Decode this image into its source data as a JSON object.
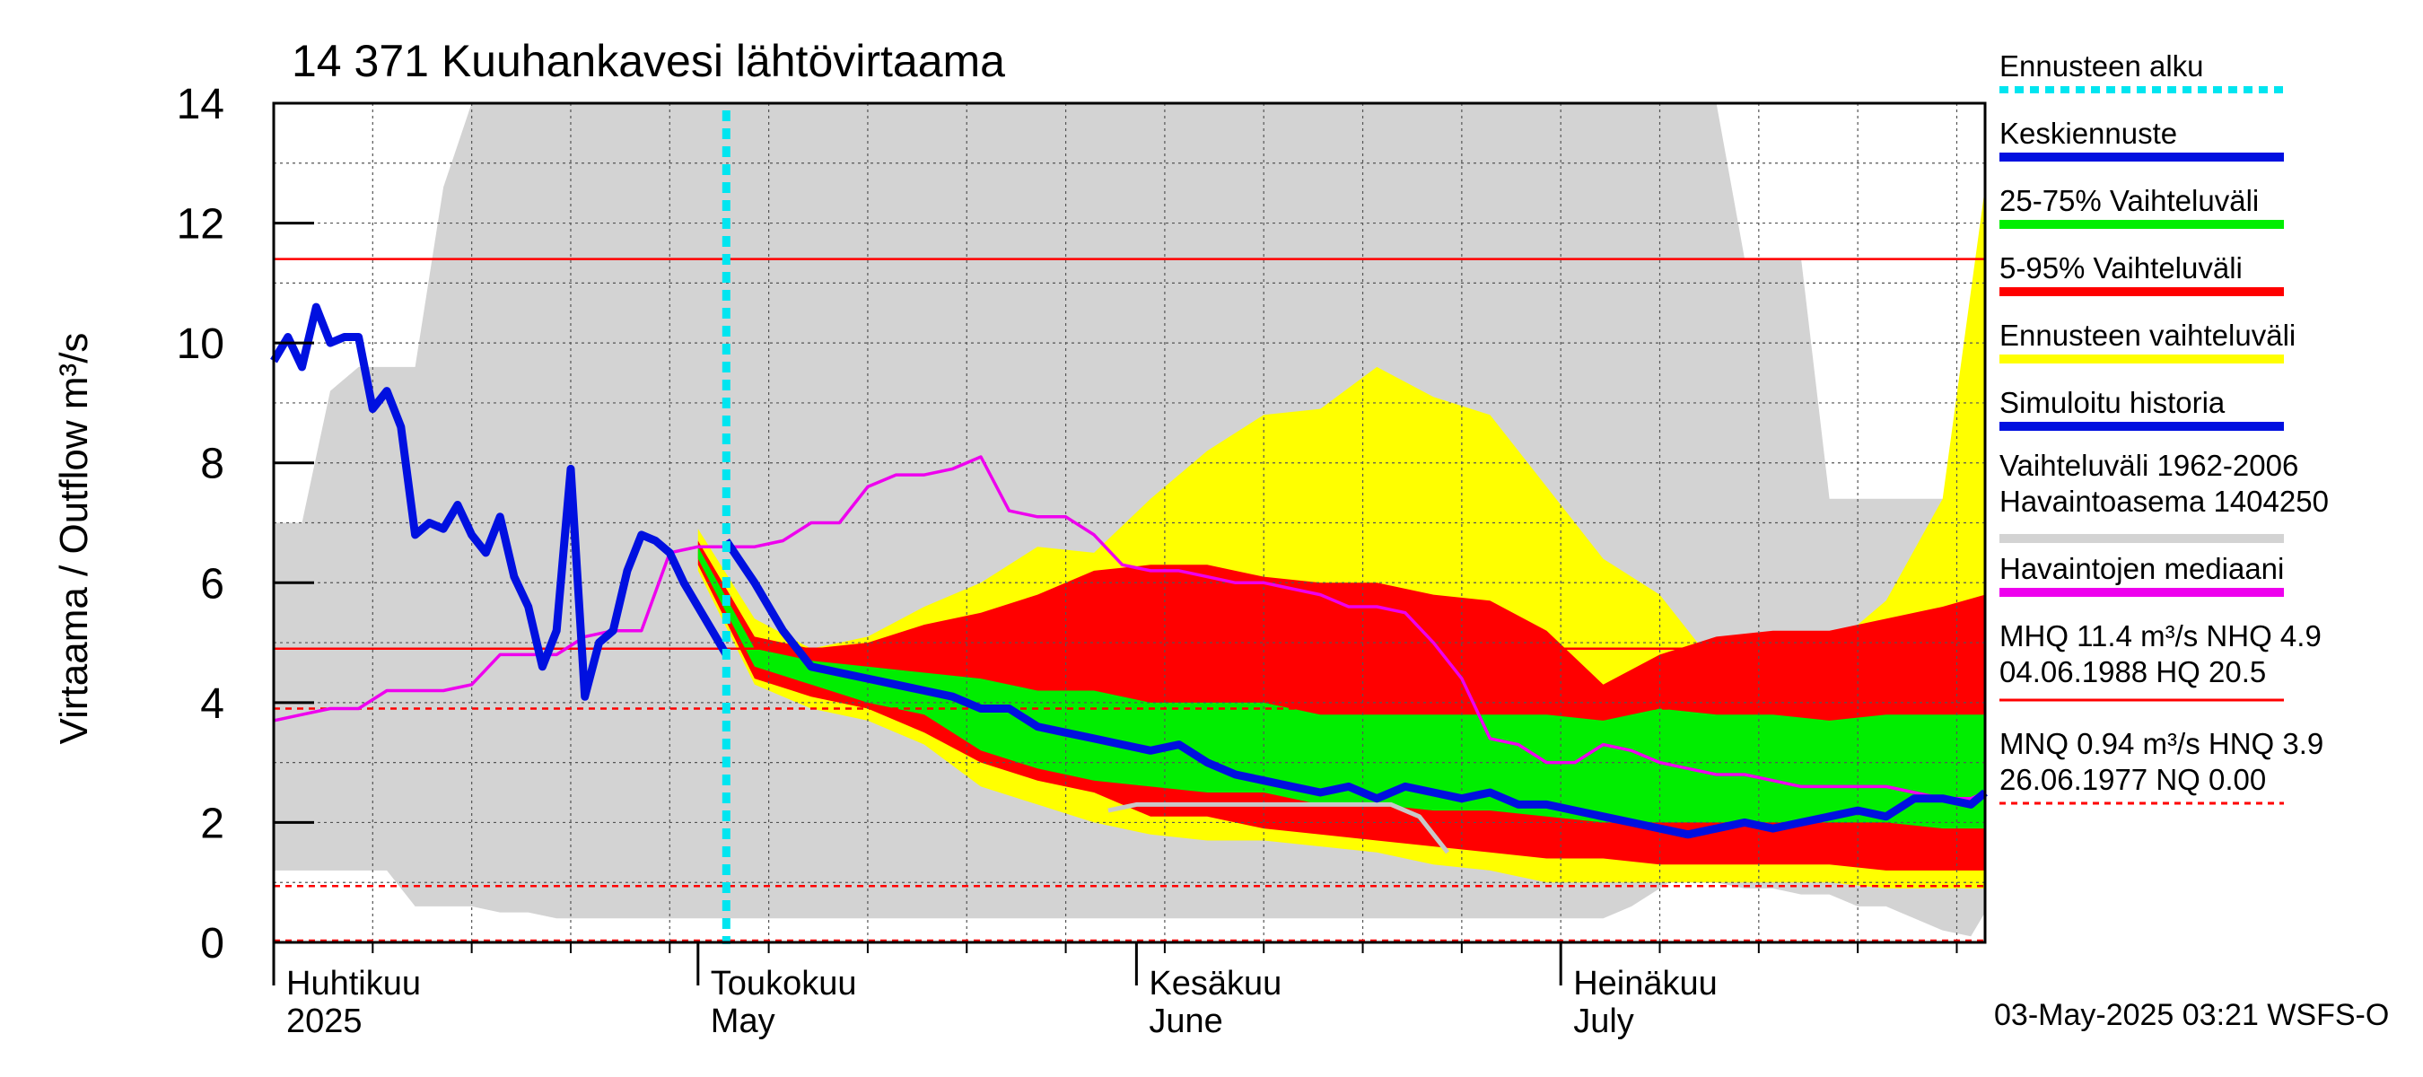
{
  "chart_data": {
    "type": "area",
    "title": "14 371 Kuuhankavesi lähtövirtaama",
    "ylabel": "Virtaama / Outflow    m³/s",
    "ylim": [
      0,
      14
    ],
    "yticks": [
      "0",
      "2",
      "4",
      "6",
      "8",
      "10",
      "12",
      "14"
    ],
    "x_start": "2025-04-01",
    "x_end": "2025-07-31",
    "month_labels": [
      {
        "fi": "Huhtikuu",
        "en": "2025",
        "date": "2025-04-01"
      },
      {
        "fi": "Toukokuu",
        "en": "May",
        "date": "2025-05-01"
      },
      {
        "fi": "Kesäkuu",
        "en": "June",
        "date": "2025-06-01"
      },
      {
        "fi": "Heinäkuu",
        "en": "July",
        "date": "2025-07-01"
      }
    ],
    "forecast_start": "2025-05-03",
    "reference_lines": {
      "MHQ": 11.4,
      "MQ_line": 4.9,
      "HNQ": 3.9,
      "MNQ": 0.94,
      "NQ": 0.0
    },
    "legend": [
      {
        "label": "Ennusteen alku",
        "color": "#00e5f0",
        "style": "dotted"
      },
      {
        "label": "Keskiennuste",
        "color": "#0010e0",
        "style": "solid"
      },
      {
        "label": "25-75% Vaihteluväli",
        "color": "#00ee00",
        "style": "solid"
      },
      {
        "label": "5-95% Vaihteluväli",
        "color": "#ff0000",
        "style": "solid"
      },
      {
        "label": "Ennusteen vaihteluväli",
        "color": "#ffff00",
        "style": "solid"
      },
      {
        "label": "Simuloitu historia",
        "color": "#0010e0",
        "style": "solid"
      },
      {
        "label": "Vaihteluväli 1962-2006\n Havaintoasema 1404250",
        "color": "#d3d3d3",
        "style": "solid"
      },
      {
        "label": "Havaintojen mediaani",
        "color": "#ee00ee",
        "style": "solid"
      },
      {
        "label": "MHQ 11.4 m³/s NHQ  4.9\n04.06.1988 HQ 20.5",
        "color": "#ff0000",
        "style": "solid"
      },
      {
        "label": "MNQ 0.94 m³/s HNQ  3.9\n26.06.1977 NQ 0.00",
        "color": "#ff0000",
        "style": "dashed"
      }
    ],
    "footer": "03-May-2025 03:21 WSFS-O",
    "series": {
      "historical_range": {
        "name": "Vaihteluväli 1962-2006",
        "color": "#d3d3d3",
        "x": [
          0,
          2,
          4,
          6,
          8,
          10,
          12,
          14,
          16,
          18,
          20,
          22,
          24,
          26,
          28,
          30,
          32,
          34,
          36,
          38,
          40,
          42,
          44,
          46,
          48,
          50,
          52,
          54,
          56,
          58,
          60,
          62,
          64,
          66,
          68,
          70,
          72,
          74,
          76,
          78,
          80,
          82,
          84,
          86,
          88,
          90,
          92,
          94,
          96,
          98,
          100,
          102,
          104,
          106,
          108,
          110,
          112,
          114,
          116,
          118,
          120,
          121
        ],
        "upper": [
          7.0,
          7.0,
          9.2,
          9.6,
          9.6,
          9.6,
          12.6,
          14.0,
          14.0,
          14.0,
          14.0,
          14.0,
          14.0,
          14.0,
          14.0,
          14.0,
          14.0,
          14.0,
          14.0,
          14.0,
          14.0,
          14.0,
          14.0,
          14.0,
          14.0,
          14.0,
          14.0,
          14.0,
          14.0,
          14.0,
          14.0,
          14.0,
          14.0,
          14.0,
          14.0,
          14.0,
          14.0,
          14.0,
          14.0,
          14.0,
          14.0,
          14.0,
          14.0,
          14.0,
          14.0,
          14.0,
          14.0,
          14.0,
          14.0,
          14.0,
          14.0,
          14.0,
          11.4,
          11.4,
          11.4,
          7.4,
          7.4,
          7.4,
          7.4,
          7.4,
          7.4,
          6.6
        ],
        "lower": [
          1.2,
          1.2,
          1.2,
          1.2,
          1.2,
          0.6,
          0.6,
          0.6,
          0.5,
          0.5,
          0.4,
          0.4,
          0.4,
          0.4,
          0.4,
          0.4,
          0.4,
          0.4,
          0.4,
          0.4,
          0.4,
          0.4,
          0.4,
          0.4,
          0.4,
          0.4,
          0.4,
          0.4,
          0.4,
          0.4,
          0.4,
          0.4,
          0.4,
          0.4,
          0.4,
          0.4,
          0.4,
          0.4,
          0.4,
          0.4,
          0.4,
          0.4,
          0.4,
          0.4,
          0.4,
          0.4,
          0.4,
          0.4,
          0.6,
          0.9,
          1.2,
          1.0,
          0.9,
          0.9,
          0.8,
          0.8,
          0.6,
          0.6,
          0.4,
          0.2,
          0.1,
          0.5
        ]
      },
      "observed_median": {
        "name": "Havaintojen mediaani",
        "color": "#ee00ee",
        "x": [
          0,
          2,
          4,
          6,
          8,
          10,
          12,
          14,
          16,
          18,
          20,
          22,
          24,
          26,
          28,
          30,
          32,
          34,
          36,
          38,
          40,
          42,
          44,
          46,
          48,
          50,
          52,
          54,
          56,
          58,
          60,
          62,
          64,
          66,
          68,
          70,
          72,
          74,
          76,
          78,
          80,
          82,
          84,
          86,
          88,
          90,
          92,
          94,
          96,
          98,
          100,
          102,
          104,
          106,
          108,
          110,
          112,
          114,
          116,
          118,
          120,
          121
        ],
        "values": [
          3.7,
          3.8,
          3.9,
          3.9,
          4.2,
          4.2,
          4.2,
          4.3,
          4.8,
          4.8,
          4.8,
          5.1,
          5.2,
          5.2,
          6.5,
          6.6,
          6.6,
          6.6,
          6.7,
          7.0,
          7.0,
          7.6,
          7.8,
          7.8,
          7.9,
          8.1,
          7.2,
          7.1,
          7.1,
          6.8,
          6.3,
          6.2,
          6.2,
          6.1,
          6.0,
          6.0,
          5.9,
          5.8,
          5.6,
          5.6,
          5.5,
          5.0,
          4.4,
          3.4,
          3.3,
          3.0,
          3.0,
          3.3,
          3.2,
          3.0,
          2.9,
          2.8,
          2.8,
          2.7,
          2.6,
          2.6,
          2.6,
          2.6,
          2.5,
          2.4,
          2.4,
          2.5
        ]
      },
      "simulated_history": {
        "name": "Simuloitu historia",
        "color": "#0010e0",
        "x": [
          0,
          1,
          2,
          3,
          4,
          5,
          6,
          7,
          8,
          9,
          10,
          11,
          12,
          13,
          14,
          15,
          16,
          17,
          18,
          19,
          20,
          21,
          22,
          23,
          24,
          25,
          26,
          27,
          28,
          29,
          30,
          31,
          32
        ],
        "values": [
          9.7,
          10.1,
          9.6,
          10.6,
          10.0,
          10.1,
          10.1,
          8.9,
          9.2,
          8.6,
          6.8,
          7.0,
          6.9,
          7.3,
          6.8,
          6.5,
          7.1,
          6.1,
          5.6,
          4.6,
          5.2,
          7.9,
          4.1,
          5.0,
          5.2,
          6.2,
          6.8,
          6.7,
          6.5,
          6.0,
          5.6,
          5.2,
          4.8
        ]
      },
      "forecast_range": {
        "name": "Ennusteen vaihteluväli",
        "color": "#ffff00",
        "x": [
          30,
          34,
          38,
          42,
          46,
          50,
          54,
          58,
          62,
          66,
          70,
          74,
          78,
          82,
          86,
          90,
          94,
          98,
          102,
          106,
          110,
          114,
          118,
          121
        ],
        "upper": [
          6.9,
          5.4,
          4.9,
          5.1,
          5.6,
          6.0,
          6.6,
          6.5,
          7.4,
          8.2,
          8.8,
          8.9,
          9.6,
          9.1,
          8.8,
          7.6,
          6.4,
          5.8,
          4.6,
          4.4,
          4.9,
          5.7,
          7.4,
          12.6
        ],
        "lower": [
          6.2,
          4.3,
          3.9,
          3.7,
          3.3,
          2.6,
          2.3,
          2.0,
          1.8,
          1.7,
          1.7,
          1.6,
          1.5,
          1.3,
          1.2,
          1.0,
          1.0,
          1.0,
          1.0,
          1.0,
          1.0,
          0.9,
          0.9,
          0.9
        ]
      },
      "range_5_95": {
        "name": "5-95% Vaihteluväli",
        "color": "#ff0000",
        "x": [
          30,
          34,
          38,
          42,
          46,
          50,
          54,
          58,
          62,
          66,
          70,
          74,
          78,
          82,
          86,
          90,
          94,
          98,
          102,
          106,
          110,
          114,
          118,
          121
        ],
        "upper": [
          6.7,
          5.1,
          4.9,
          5.0,
          5.3,
          5.5,
          5.8,
          6.2,
          6.3,
          6.3,
          6.1,
          6.0,
          6.0,
          5.8,
          5.7,
          5.2,
          4.3,
          4.8,
          5.1,
          5.2,
          5.2,
          5.4,
          5.6,
          5.8
        ],
        "lower": [
          6.3,
          4.4,
          4.1,
          3.9,
          3.5,
          3.0,
          2.7,
          2.5,
          2.1,
          2.1,
          1.9,
          1.8,
          1.7,
          1.6,
          1.5,
          1.4,
          1.4,
          1.3,
          1.3,
          1.3,
          1.3,
          1.2,
          1.2,
          1.2
        ]
      },
      "range_25_75": {
        "name": "25-75% Vaihteluväli",
        "color": "#00ee00",
        "x": [
          30,
          34,
          38,
          42,
          46,
          50,
          54,
          58,
          62,
          66,
          70,
          74,
          78,
          82,
          86,
          90,
          94,
          98,
          102,
          106,
          110,
          114,
          118,
          121
        ],
        "upper": [
          6.6,
          4.9,
          4.7,
          4.6,
          4.5,
          4.4,
          4.2,
          4.2,
          4.0,
          4.0,
          4.0,
          3.8,
          3.8,
          3.8,
          3.8,
          3.8,
          3.7,
          3.9,
          3.8,
          3.8,
          3.7,
          3.8,
          3.8,
          3.8
        ],
        "lower": [
          6.4,
          4.6,
          4.3,
          4.0,
          3.8,
          3.2,
          2.9,
          2.7,
          2.6,
          2.5,
          2.5,
          2.3,
          2.3,
          2.2,
          2.2,
          2.1,
          2.0,
          2.0,
          2.0,
          2.0,
          2.0,
          2.0,
          1.9,
          1.9
        ]
      },
      "mean_forecast": {
        "name": "Keskiennuste",
        "color": "#0010e0",
        "x": [
          32,
          34,
          36,
          38,
          40,
          42,
          44,
          46,
          48,
          50,
          52,
          54,
          56,
          58,
          60,
          62,
          64,
          66,
          68,
          70,
          72,
          74,
          76,
          78,
          80,
          82,
          84,
          86,
          88,
          90,
          92,
          94,
          96,
          98,
          100,
          102,
          104,
          106,
          108,
          110,
          112,
          114,
          116,
          118,
          120,
          121
        ],
        "values": [
          6.7,
          6.0,
          5.2,
          4.6,
          4.5,
          4.4,
          4.3,
          4.2,
          4.1,
          3.9,
          3.9,
          3.6,
          3.5,
          3.4,
          3.3,
          3.2,
          3.3,
          3.0,
          2.8,
          2.7,
          2.6,
          2.5,
          2.6,
          2.4,
          2.6,
          2.5,
          2.4,
          2.5,
          2.3,
          2.3,
          2.2,
          2.1,
          2.0,
          1.9,
          1.8,
          1.9,
          2.0,
          1.9,
          2.0,
          2.1,
          2.2,
          2.1,
          2.4,
          2.4,
          2.3,
          2.5
        ]
      },
      "dry_year_gray": {
        "name": "",
        "color": "#c8c8c8",
        "x": [
          59,
          61,
          63,
          67,
          71,
          75,
          79,
          81,
          83
        ],
        "values": [
          2.2,
          2.3,
          2.3,
          2.3,
          2.3,
          2.3,
          2.3,
          2.1,
          1.5
        ]
      }
    }
  }
}
